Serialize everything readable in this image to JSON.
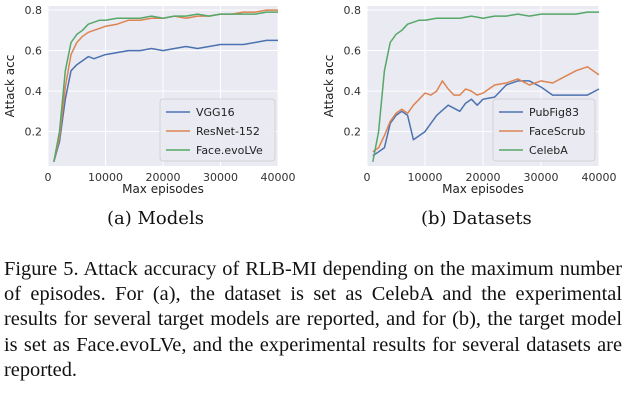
{
  "chart_data": [
    {
      "type": "line",
      "title": "",
      "caption": "(a) Models",
      "xlabel": "Max episodes",
      "ylabel": "Attack acc",
      "xlim": [
        0,
        40000
      ],
      "ylim": [
        0.03,
        0.82
      ],
      "xticks": [
        0,
        10000,
        20000,
        30000,
        40000
      ],
      "yticks": [
        0.2,
        0.4,
        0.6,
        0.8
      ],
      "xtick_labels": [
        "0",
        "10000",
        "20000",
        "30000",
        "40000"
      ],
      "ytick_labels": [
        "0.2",
        "0.4",
        "0.6",
        "0.8"
      ],
      "grid": true,
      "legend_position": "lower-right",
      "series": [
        {
          "name": "VGG16",
          "color": "#4c72b0",
          "x": [
            1000,
            2000,
            3000,
            4000,
            5000,
            6000,
            7000,
            8000,
            9000,
            10000,
            12000,
            14000,
            16000,
            18000,
            20000,
            22000,
            24000,
            26000,
            28000,
            30000,
            32000,
            34000,
            36000,
            38000,
            40000
          ],
          "y": [
            0.05,
            0.15,
            0.36,
            0.5,
            0.53,
            0.55,
            0.57,
            0.56,
            0.57,
            0.58,
            0.59,
            0.6,
            0.6,
            0.61,
            0.6,
            0.61,
            0.62,
            0.61,
            0.62,
            0.63,
            0.63,
            0.63,
            0.64,
            0.65,
            0.65
          ]
        },
        {
          "name": "ResNet-152",
          "color": "#dd8452",
          "x": [
            1000,
            2000,
            3000,
            4000,
            5000,
            6000,
            7000,
            8000,
            9000,
            10000,
            12000,
            14000,
            16000,
            18000,
            20000,
            22000,
            24000,
            26000,
            28000,
            30000,
            32000,
            34000,
            36000,
            38000,
            40000
          ],
          "y": [
            0.05,
            0.17,
            0.42,
            0.58,
            0.64,
            0.67,
            0.69,
            0.7,
            0.71,
            0.72,
            0.73,
            0.75,
            0.75,
            0.76,
            0.76,
            0.77,
            0.76,
            0.77,
            0.77,
            0.78,
            0.78,
            0.79,
            0.79,
            0.8,
            0.8
          ]
        },
        {
          "name": "Face.evoLVe",
          "color": "#55a868",
          "x": [
            1000,
            2000,
            3000,
            4000,
            5000,
            6000,
            7000,
            8000,
            9000,
            10000,
            12000,
            14000,
            16000,
            18000,
            20000,
            22000,
            24000,
            26000,
            28000,
            30000,
            32000,
            34000,
            36000,
            38000,
            40000
          ],
          "y": [
            0.05,
            0.2,
            0.5,
            0.64,
            0.68,
            0.7,
            0.73,
            0.74,
            0.75,
            0.75,
            0.76,
            0.76,
            0.76,
            0.77,
            0.76,
            0.77,
            0.77,
            0.78,
            0.77,
            0.78,
            0.78,
            0.78,
            0.78,
            0.79,
            0.79
          ]
        }
      ]
    },
    {
      "type": "line",
      "title": "",
      "caption": "(b) Datasets",
      "xlabel": "Max episodes",
      "ylabel": "Attack acc",
      "xlim": [
        0,
        40000
      ],
      "ylim": [
        0.03,
        0.82
      ],
      "xticks": [
        0,
        10000,
        20000,
        30000,
        40000
      ],
      "yticks": [
        0.2,
        0.4,
        0.6,
        0.8
      ],
      "xtick_labels": [
        "0",
        "10000",
        "20000",
        "30000",
        "40000"
      ],
      "ytick_labels": [
        "0.2",
        "0.4",
        "0.6",
        "0.8"
      ],
      "grid": true,
      "legend_position": "lower-right",
      "series": [
        {
          "name": "PubFig83",
          "color": "#4c72b0",
          "x": [
            1000,
            2000,
            3000,
            4000,
            5000,
            6000,
            7000,
            8000,
            10000,
            12000,
            14000,
            16000,
            17000,
            18000,
            19000,
            20000,
            22000,
            24000,
            26000,
            28000,
            30000,
            32000,
            34000,
            36000,
            38000,
            40000
          ],
          "y": [
            0.08,
            0.1,
            0.12,
            0.24,
            0.28,
            0.3,
            0.28,
            0.16,
            0.2,
            0.28,
            0.33,
            0.3,
            0.34,
            0.36,
            0.33,
            0.36,
            0.37,
            0.43,
            0.45,
            0.45,
            0.42,
            0.38,
            0.38,
            0.38,
            0.38,
            0.41
          ]
        },
        {
          "name": "FaceScrub",
          "color": "#dd8452",
          "x": [
            1000,
            2000,
            3000,
            4000,
            5000,
            6000,
            7000,
            8000,
            9000,
            10000,
            11000,
            12000,
            13000,
            14000,
            15000,
            16000,
            17000,
            18000,
            19000,
            20000,
            22000,
            24000,
            26000,
            28000,
            30000,
            32000,
            34000,
            36000,
            38000,
            40000
          ],
          "y": [
            0.1,
            0.12,
            0.18,
            0.25,
            0.29,
            0.31,
            0.29,
            0.33,
            0.36,
            0.39,
            0.38,
            0.4,
            0.45,
            0.41,
            0.38,
            0.38,
            0.41,
            0.4,
            0.38,
            0.39,
            0.43,
            0.44,
            0.46,
            0.43,
            0.45,
            0.44,
            0.47,
            0.5,
            0.52,
            0.48
          ]
        },
        {
          "name": "CelebA",
          "color": "#55a868",
          "x": [
            1000,
            2000,
            3000,
            4000,
            5000,
            6000,
            7000,
            8000,
            9000,
            10000,
            12000,
            14000,
            16000,
            18000,
            20000,
            22000,
            24000,
            26000,
            28000,
            30000,
            32000,
            34000,
            36000,
            38000,
            40000
          ],
          "y": [
            0.05,
            0.2,
            0.5,
            0.64,
            0.68,
            0.7,
            0.73,
            0.74,
            0.75,
            0.75,
            0.76,
            0.76,
            0.76,
            0.77,
            0.76,
            0.77,
            0.77,
            0.78,
            0.77,
            0.78,
            0.78,
            0.78,
            0.78,
            0.79,
            0.79
          ]
        }
      ]
    }
  ],
  "figure_caption": "Figure 5. Attack accuracy of RLB-MI depending on the maximum number of episodes. For (a), the dataset is set as CelebA and the experimental results for several target models are reported, and for (b), the target model is set as Face.evoLVe, and the experimental results for several datasets are reported."
}
